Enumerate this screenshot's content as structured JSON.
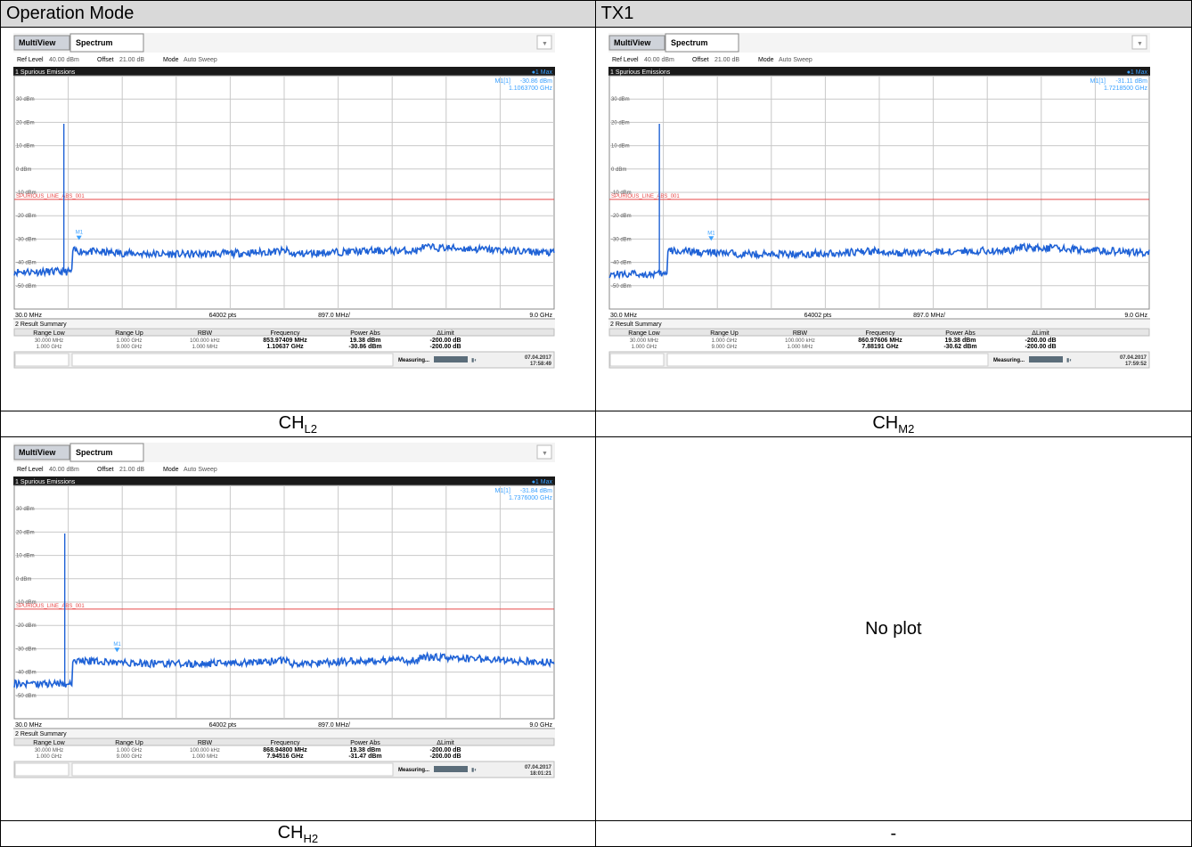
{
  "header": {
    "col1": "Operation Mode",
    "col2": "TX1"
  },
  "captions": {
    "low": {
      "base": "CH",
      "sub": "L2"
    },
    "mid": {
      "base": "CH",
      "sub": "M2"
    },
    "high": {
      "base": "CH",
      "sub": "H2"
    },
    "empty": "-"
  },
  "no_plot": "No plot",
  "common": {
    "tab_multiview": "MultiView",
    "tab_spectrum": "Spectrum",
    "ref_level_label": "Ref Level",
    "ref_level_value": "40.00 dBm",
    "offset_label": "Offset",
    "offset_value": "21.00 dB",
    "mode_label": "Mode",
    "mode_value": "Auto Sweep",
    "panel1_title": "1 Spurious Emissions",
    "trace_label": "1 Max",
    "limit_line_label": "SPURIOUS_LINE_ABS_001",
    "points": "64002 pts",
    "mid_freq": "897.0 MHz/",
    "panel2_title": "2 Result Summary",
    "table_headers": [
      "Range Low",
      "Range Up",
      "RBW",
      "Frequency",
      "Power Abs",
      "ΔLimit"
    ],
    "range_low": [
      "30.000 MHz",
      "1.000 GHz"
    ],
    "range_up": [
      "1.000 GHz",
      "9.000 GHz"
    ],
    "rbw": [
      "100.000 kHz",
      "1.000 MHz"
    ],
    "status": "Measuring...",
    "marker_name": "M1",
    "marker_readout_label": "M1[1]"
  },
  "chart_data": [
    {
      "type": "line",
      "caption": "CH L2",
      "x_start": "30.0 MHz",
      "x_stop": "9.0 GHz",
      "x_range_hz": [
        30000000,
        9000000000
      ],
      "y_range_dbm": [
        -60,
        40
      ],
      "y_ticks": [
        "30 dBm",
        "20 dBm",
        "10 dBm",
        "0 dBm",
        "-10 dBm",
        "-20 dBm",
        "-30 dBm",
        "-40 dBm",
        "-50 dBm"
      ],
      "limit_line_dbm": -13,
      "carrier_freq_mhz": 853.97409,
      "carrier_level_dbm": 19.38,
      "marker_freq_ghz": 1.10637,
      "marker_level_dbm": -30.86,
      "marker_readout": {
        "level": "-30.86 dBm",
        "freq": "1.1063700 GHz"
      },
      "results": [
        {
          "frequency": "853.97409 MHz",
          "power_abs": "19.38 dBm",
          "delta_limit": "-200.00 dB"
        },
        {
          "frequency": "1.10637 GHz",
          "power_abs": "-30.86 dBm",
          "delta_limit": "-200.00 dB"
        }
      ],
      "date": "07.04.2017",
      "time": "17:58:49",
      "noise_floor": {
        "below_1ghz_dbm": -44,
        "above_1ghz_dbm": -35
      }
    },
    {
      "type": "line",
      "caption": "CH M2",
      "x_start": "30.0 MHz",
      "x_stop": "9.0 GHz",
      "x_range_hz": [
        30000000,
        9000000000
      ],
      "y_range_dbm": [
        -60,
        40
      ],
      "y_ticks": [
        "30 dBm",
        "20 dBm",
        "10 dBm",
        "0 dBm",
        "-10 dBm",
        "-20 dBm",
        "-30 dBm",
        "-40 dBm",
        "-50 dBm"
      ],
      "limit_line_dbm": -13,
      "carrier_freq_mhz": 860.97606,
      "carrier_level_dbm": 19.38,
      "marker_freq_ghz": 1.72185,
      "marker_level_dbm": -31.11,
      "marker_readout": {
        "level": "-31.11 dBm",
        "freq": "1.7218500 GHz"
      },
      "results": [
        {
          "frequency": "860.97606 MHz",
          "power_abs": "19.38 dBm",
          "delta_limit": "-200.00 dB"
        },
        {
          "frequency": "7.88191 GHz",
          "power_abs": "-30.62 dBm",
          "delta_limit": "-200.00 dB"
        }
      ],
      "date": "07.04.2017",
      "time": "17:59:52",
      "noise_floor": {
        "below_1ghz_dbm": -45,
        "above_1ghz_dbm": -35
      }
    },
    {
      "type": "line",
      "caption": "CH H2",
      "x_start": "30.0 MHz",
      "x_stop": "9.0 GHz",
      "x_range_hz": [
        30000000,
        9000000000
      ],
      "y_range_dbm": [
        -60,
        40
      ],
      "y_ticks": [
        "30 dBm",
        "20 dBm",
        "10 dBm",
        "0 dBm",
        "-10 dBm",
        "-20 dBm",
        "-30 dBm",
        "-40 dBm",
        "-50 dBm"
      ],
      "limit_line_dbm": -13,
      "carrier_freq_mhz": 868.948,
      "carrier_level_dbm": 19.38,
      "marker_freq_ghz": 1.7376,
      "marker_level_dbm": -31.84,
      "marker_readout": {
        "level": "-31.84 dBm",
        "freq": "1.7376000 GHz"
      },
      "results": [
        {
          "frequency": "868.94800 MHz",
          "power_abs": "19.38 dBm",
          "delta_limit": "-200.00 dB"
        },
        {
          "frequency": "7.94516 GHz",
          "power_abs": "-31.47 dBm",
          "delta_limit": "-200.00 dB"
        }
      ],
      "date": "07.04.2017",
      "time": "18:01:21",
      "noise_floor": {
        "below_1ghz_dbm": -45,
        "above_1ghz_dbm": -35
      }
    }
  ]
}
